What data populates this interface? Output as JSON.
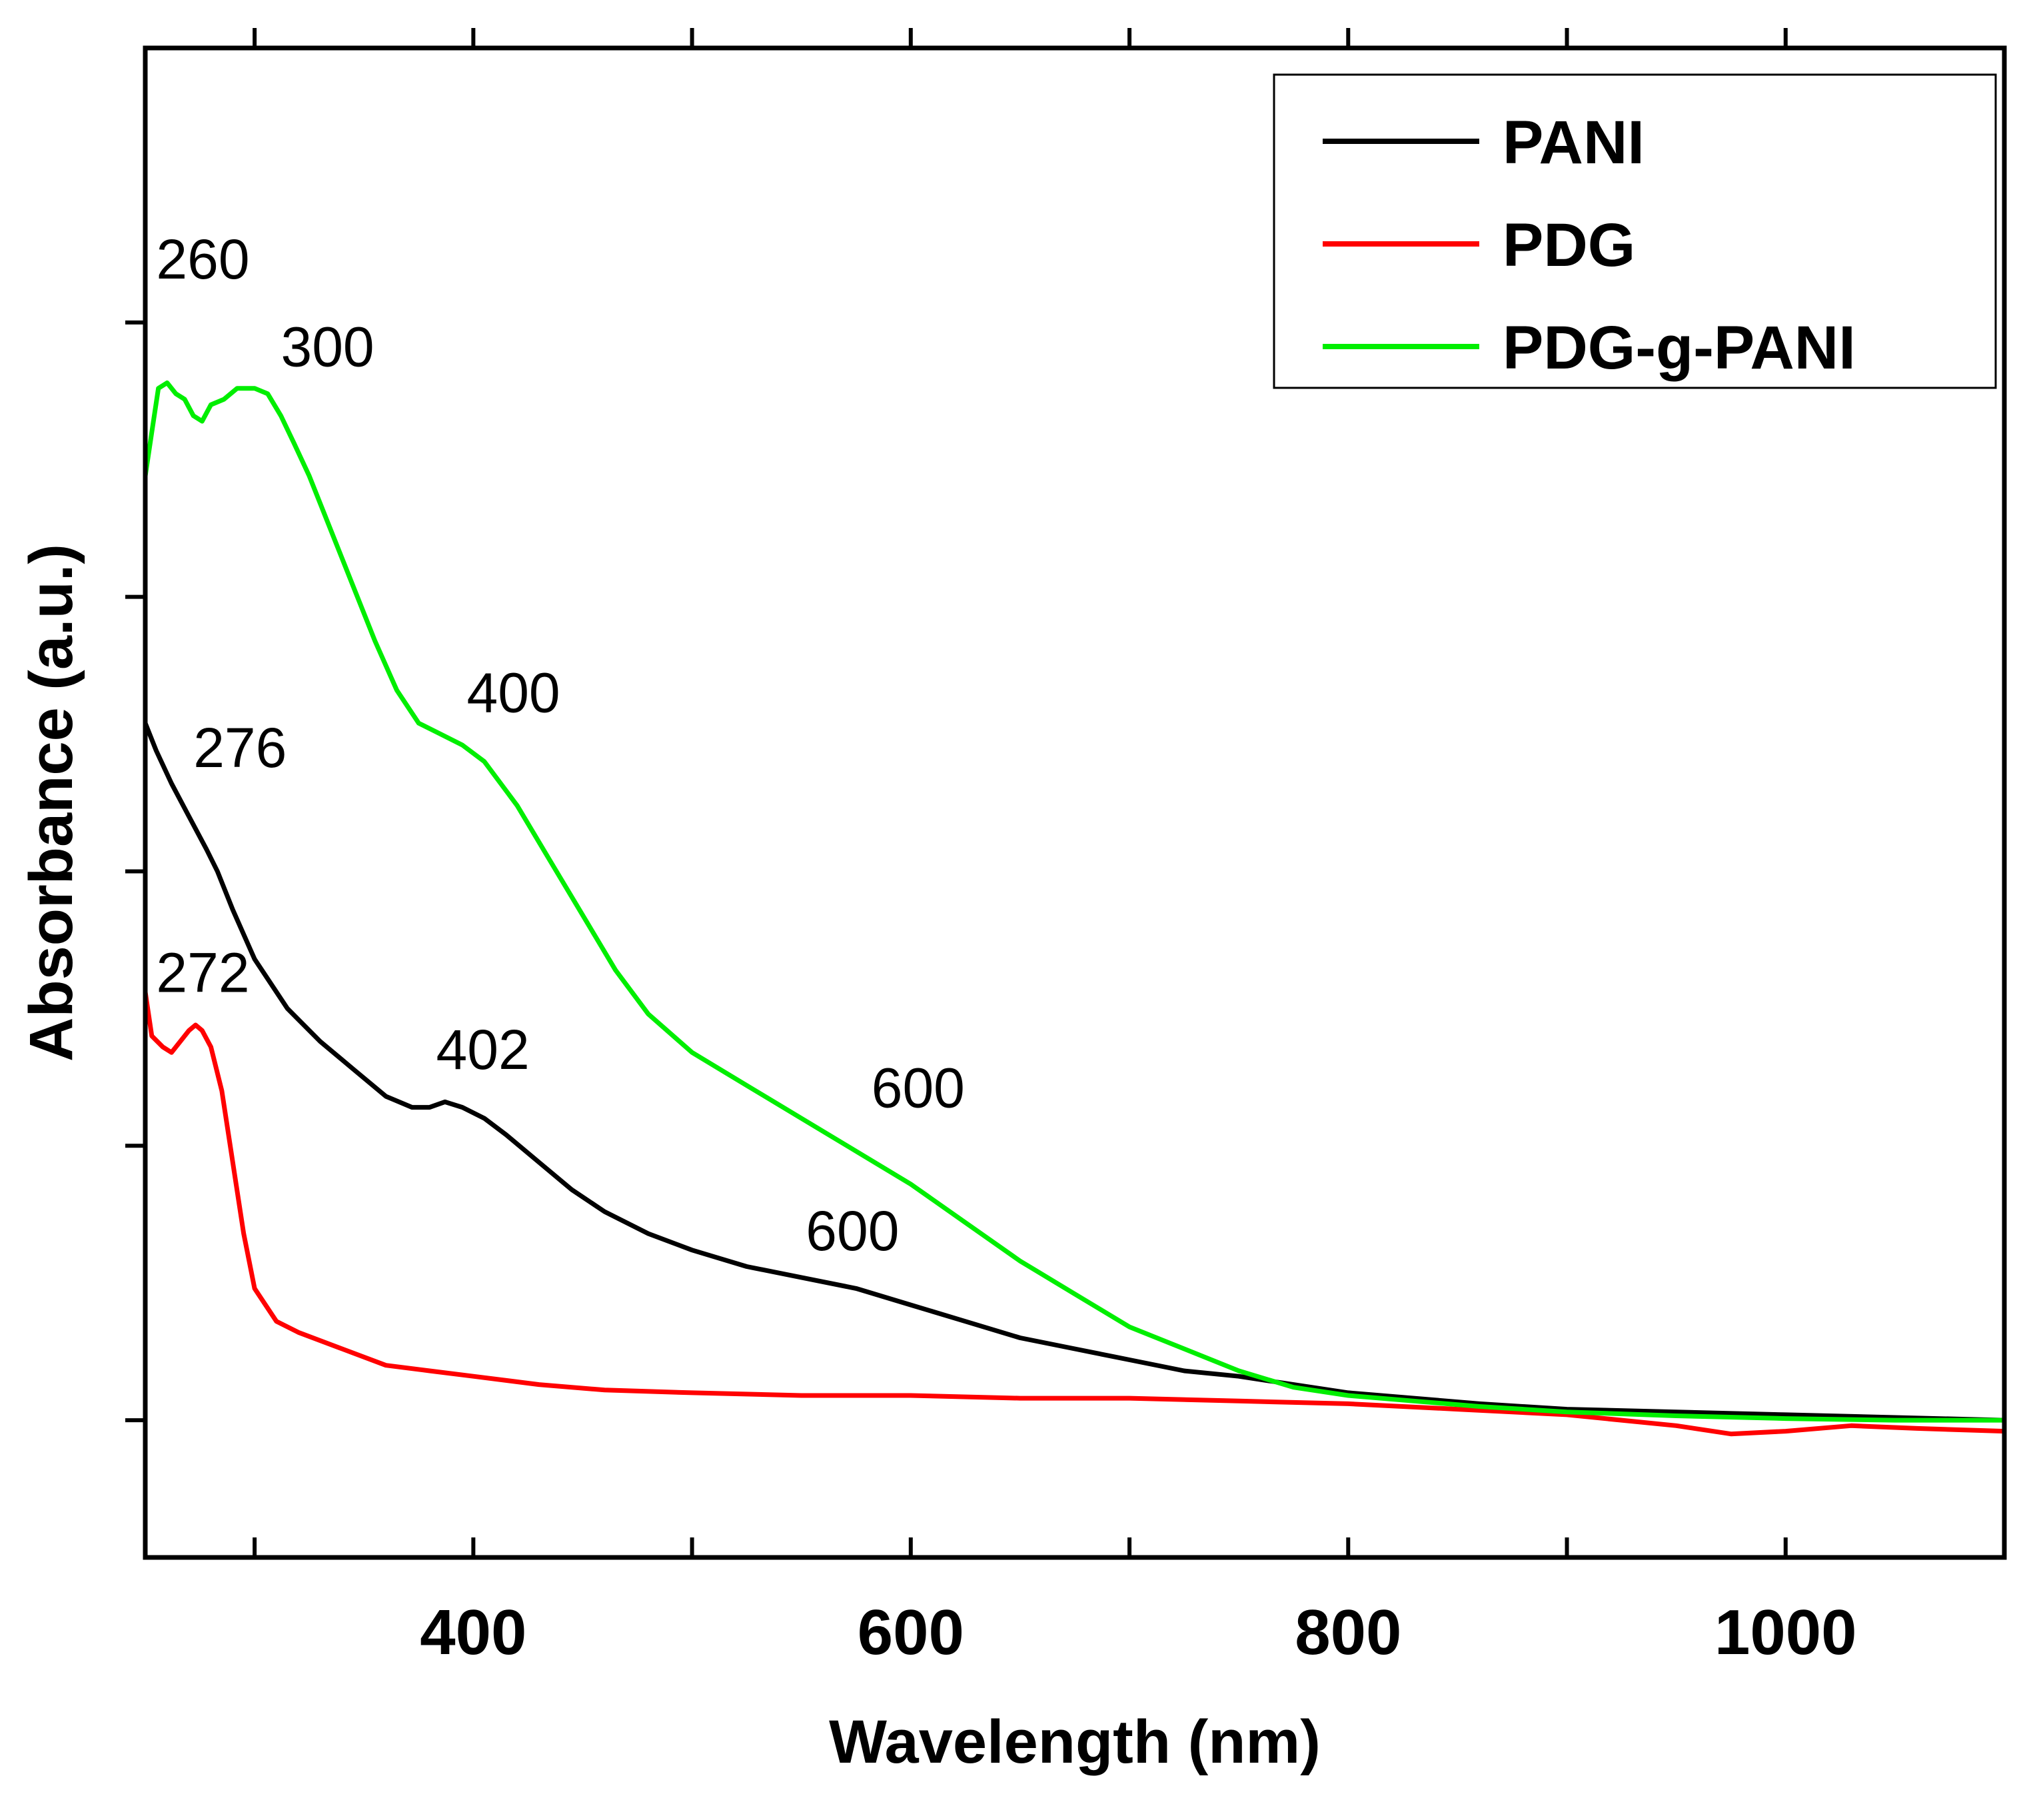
{
  "chart_data": {
    "type": "line",
    "title": "",
    "xlabel": "Wavelength (nm)",
    "ylabel": "Absorbance (a.u.)",
    "xlim": [
      250,
      1100
    ],
    "ylim": [
      -0.25,
      2.5
    ],
    "x_ticks": [
      400,
      600,
      800,
      1000
    ],
    "x_minor_ticks": [
      300,
      500,
      700,
      900,
      1100
    ],
    "y_ticks": [
      0,
      0.5,
      1.0,
      1.5,
      2.0
    ],
    "y_tick_labels_shown": false,
    "grid": false,
    "legend_position": "top-right",
    "series": [
      {
        "name": "PANI",
        "color": "#000000",
        "points": [
          [
            250,
            1.27
          ],
          [
            255,
            1.22
          ],
          [
            262,
            1.16
          ],
          [
            270,
            1.1
          ],
          [
            278,
            1.04
          ],
          [
            283,
            1.0
          ],
          [
            290,
            0.93
          ],
          [
            300,
            0.84
          ],
          [
            315,
            0.75
          ],
          [
            330,
            0.69
          ],
          [
            345,
            0.64
          ],
          [
            360,
            0.59
          ],
          [
            372,
            0.57
          ],
          [
            380,
            0.57
          ],
          [
            387,
            0.58
          ],
          [
            395,
            0.57
          ],
          [
            405,
            0.55
          ],
          [
            415,
            0.52
          ],
          [
            430,
            0.47
          ],
          [
            445,
            0.42
          ],
          [
            460,
            0.38
          ],
          [
            480,
            0.34
          ],
          [
            500,
            0.31
          ],
          [
            525,
            0.28
          ],
          [
            550,
            0.26
          ],
          [
            575,
            0.24
          ],
          [
            600,
            0.21
          ],
          [
            625,
            0.18
          ],
          [
            650,
            0.15
          ],
          [
            675,
            0.13
          ],
          [
            700,
            0.11
          ],
          [
            725,
            0.09
          ],
          [
            750,
            0.08
          ],
          [
            775,
            0.065
          ],
          [
            800,
            0.05
          ],
          [
            830,
            0.04
          ],
          [
            860,
            0.03
          ],
          [
            900,
            0.02
          ],
          [
            950,
            0.015
          ],
          [
            1000,
            0.01
          ],
          [
            1050,
            0.005
          ],
          [
            1100,
            0.0
          ]
        ]
      },
      {
        "name": "PDG",
        "color": "#ff0000",
        "points": [
          [
            250,
            0.78
          ],
          [
            253,
            0.7
          ],
          [
            258,
            0.68
          ],
          [
            262,
            0.67
          ],
          [
            266,
            0.69
          ],
          [
            270,
            0.71
          ],
          [
            273,
            0.72
          ],
          [
            276,
            0.71
          ],
          [
            280,
            0.68
          ],
          [
            285,
            0.6
          ],
          [
            290,
            0.47
          ],
          [
            295,
            0.34
          ],
          [
            300,
            0.24
          ],
          [
            310,
            0.18
          ],
          [
            320,
            0.16
          ],
          [
            340,
            0.13
          ],
          [
            360,
            0.1
          ],
          [
            380,
            0.09
          ],
          [
            400,
            0.08
          ],
          [
            430,
            0.065
          ],
          [
            460,
            0.055
          ],
          [
            500,
            0.05
          ],
          [
            550,
            0.045
          ],
          [
            600,
            0.045
          ],
          [
            650,
            0.04
          ],
          [
            700,
            0.04
          ],
          [
            750,
            0.035
          ],
          [
            800,
            0.03
          ],
          [
            850,
            0.02
          ],
          [
            900,
            0.01
          ],
          [
            950,
            -0.01
          ],
          [
            975,
            -0.025
          ],
          [
            1000,
            -0.02
          ],
          [
            1030,
            -0.01
          ],
          [
            1060,
            -0.015
          ],
          [
            1100,
            -0.02
          ]
        ]
      },
      {
        "name": "PDG-g-PANI",
        "color": "#00ee00",
        "points": [
          [
            250,
            1.72
          ],
          [
            253,
            1.8
          ],
          [
            256,
            1.88
          ],
          [
            260,
            1.89
          ],
          [
            264,
            1.87
          ],
          [
            268,
            1.86
          ],
          [
            272,
            1.83
          ],
          [
            276,
            1.82
          ],
          [
            280,
            1.85
          ],
          [
            286,
            1.86
          ],
          [
            292,
            1.88
          ],
          [
            300,
            1.88
          ],
          [
            306,
            1.87
          ],
          [
            312,
            1.83
          ],
          [
            318,
            1.78
          ],
          [
            325,
            1.72
          ],
          [
            335,
            1.62
          ],
          [
            345,
            1.52
          ],
          [
            355,
            1.42
          ],
          [
            365,
            1.33
          ],
          [
            375,
            1.27
          ],
          [
            385,
            1.25
          ],
          [
            395,
            1.23
          ],
          [
            405,
            1.2
          ],
          [
            420,
            1.12
          ],
          [
            435,
            1.02
          ],
          [
            450,
            0.92
          ],
          [
            465,
            0.82
          ],
          [
            480,
            0.74
          ],
          [
            500,
            0.67
          ],
          [
            525,
            0.61
          ],
          [
            550,
            0.55
          ],
          [
            575,
            0.49
          ],
          [
            600,
            0.43
          ],
          [
            625,
            0.36
          ],
          [
            650,
            0.29
          ],
          [
            675,
            0.23
          ],
          [
            700,
            0.17
          ],
          [
            725,
            0.13
          ],
          [
            750,
            0.09
          ],
          [
            775,
            0.06
          ],
          [
            800,
            0.045
          ],
          [
            830,
            0.035
          ],
          [
            860,
            0.025
          ],
          [
            900,
            0.015
          ],
          [
            950,
            0.008
          ],
          [
            1000,
            0.003
          ],
          [
            1050,
            0.0
          ],
          [
            1100,
            0.0
          ]
        ]
      }
    ],
    "annotations": [
      {
        "text": "260",
        "x": 255,
        "y": 2.08
      },
      {
        "text": "300",
        "x": 312,
        "y": 1.92
      },
      {
        "text": "400",
        "x": 397,
        "y": 1.29
      },
      {
        "text": "600",
        "x": 582,
        "y": 0.57
      },
      {
        "text": "276",
        "x": 272,
        "y": 1.19
      },
      {
        "text": "402",
        "x": 383,
        "y": 0.64
      },
      {
        "text": "600",
        "x": 552,
        "y": 0.31
      },
      {
        "text": "272",
        "x": 255,
        "y": 0.78
      }
    ]
  }
}
